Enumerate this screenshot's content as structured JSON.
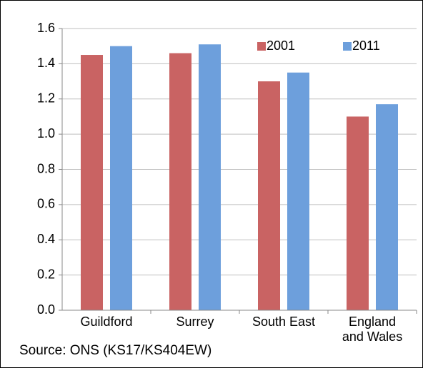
{
  "chart_data": {
    "type": "bar",
    "categories": [
      "Guildford",
      "Surrey",
      "South East",
      "England and Wales"
    ],
    "series": [
      {
        "name": "2001",
        "color": "#c96363",
        "values": [
          1.45,
          1.46,
          1.3,
          1.1
        ]
      },
      {
        "name": "2011",
        "color": "#6d9fdc",
        "values": [
          1.5,
          1.51,
          1.35,
          1.17
        ]
      }
    ],
    "ylim": [
      0,
      1.6
    ],
    "yticks": [
      {
        "value": 0,
        "label": "0.0"
      },
      0.2,
      0.4,
      0.6,
      0.8,
      {
        "value": 1,
        "label": "1.0"
      },
      1.2,
      1.4,
      1.6
    ],
    "grid": true,
    "legend": "upper right",
    "annotation": "Source: ONS (KS17/KS404EW)"
  }
}
